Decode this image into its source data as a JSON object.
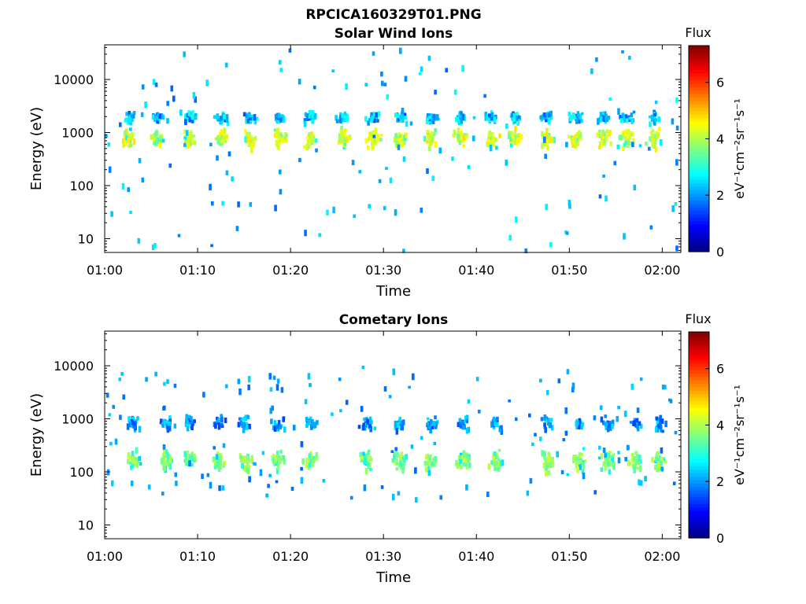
{
  "figure_title": "RPCICA160329T01.PNG",
  "colors": {
    "colormap": [
      "#00007f",
      "#0000ff",
      "#007fff",
      "#00ffff",
      "#7fff7f",
      "#ffff00",
      "#ff7f00",
      "#ff0000",
      "#7f0000"
    ]
  },
  "chart_data": [
    {
      "type": "heatmap",
      "title": "Solar Wind Ions",
      "xlabel": "Time",
      "ylabel": "Energy (eV)",
      "xticks": [
        "01:00",
        "01:10",
        "01:20",
        "01:30",
        "01:40",
        "01:50",
        "02:00"
      ],
      "xlim_minutes": [
        0,
        62
      ],
      "yscale": "log",
      "ylim": [
        5.5,
        45000
      ],
      "yticks": [
        "10",
        "100",
        "1000",
        "10000"
      ],
      "colorbar": {
        "label": "Flux",
        "unit": "eV⁻¹cm⁻²sr⁻¹s⁻¹",
        "range": [
          0,
          7.3
        ],
        "ticks": [
          "0",
          "2",
          "4",
          "6"
        ]
      },
      "pulse_minutes": [
        2.5,
        5.5,
        9,
        12.5,
        15.5,
        18.8,
        22,
        25.5,
        28.8,
        31.8,
        35,
        38.2,
        41.5,
        44,
        47.5,
        50.5,
        53.5,
        56,
        59
      ],
      "clusters": [
        {
          "center_energy": 850,
          "spread_decades": 0.13,
          "peak": 4.8,
          "density": 0.85
        },
        {
          "center_energy": 2100,
          "spread_decades": 0.08,
          "peak": 2.9,
          "density": 0.6
        }
      ],
      "background_energy_range": [
        5.5,
        40000
      ],
      "background_peak": 2.8
    },
    {
      "type": "heatmap",
      "title": "Cometary Ions",
      "xlabel": "Time",
      "ylabel": "Energy (eV)",
      "xticks": [
        "01:00",
        "01:10",
        "01:20",
        "01:30",
        "01:40",
        "01:50",
        "02:00"
      ],
      "xlim_minutes": [
        0,
        62
      ],
      "yscale": "log",
      "ylim": [
        5.5,
        45000
      ],
      "yticks": [
        "10",
        "100",
        "1000",
        "10000"
      ],
      "colorbar": {
        "label": "Flux",
        "unit": "eV⁻¹cm⁻²sr⁻¹s⁻¹",
        "range": [
          0,
          7.3
        ],
        "ticks": [
          "0",
          "2",
          "4",
          "6"
        ]
      },
      "pulse_minutes": [
        3,
        6.5,
        9,
        12,
        15,
        18.5,
        22,
        28,
        31.5,
        35,
        38.5,
        42,
        47.5,
        51,
        54,
        57,
        59.5
      ],
      "clusters": [
        {
          "center_energy": 180,
          "spread_decades": 0.15,
          "peak": 4.2,
          "density": 0.75
        },
        {
          "center_energy": 900,
          "spread_decades": 0.1,
          "peak": 2.6,
          "density": 0.5
        }
      ],
      "background_energy_range": [
        30,
        11000
      ],
      "background_peak": 2.5
    }
  ]
}
